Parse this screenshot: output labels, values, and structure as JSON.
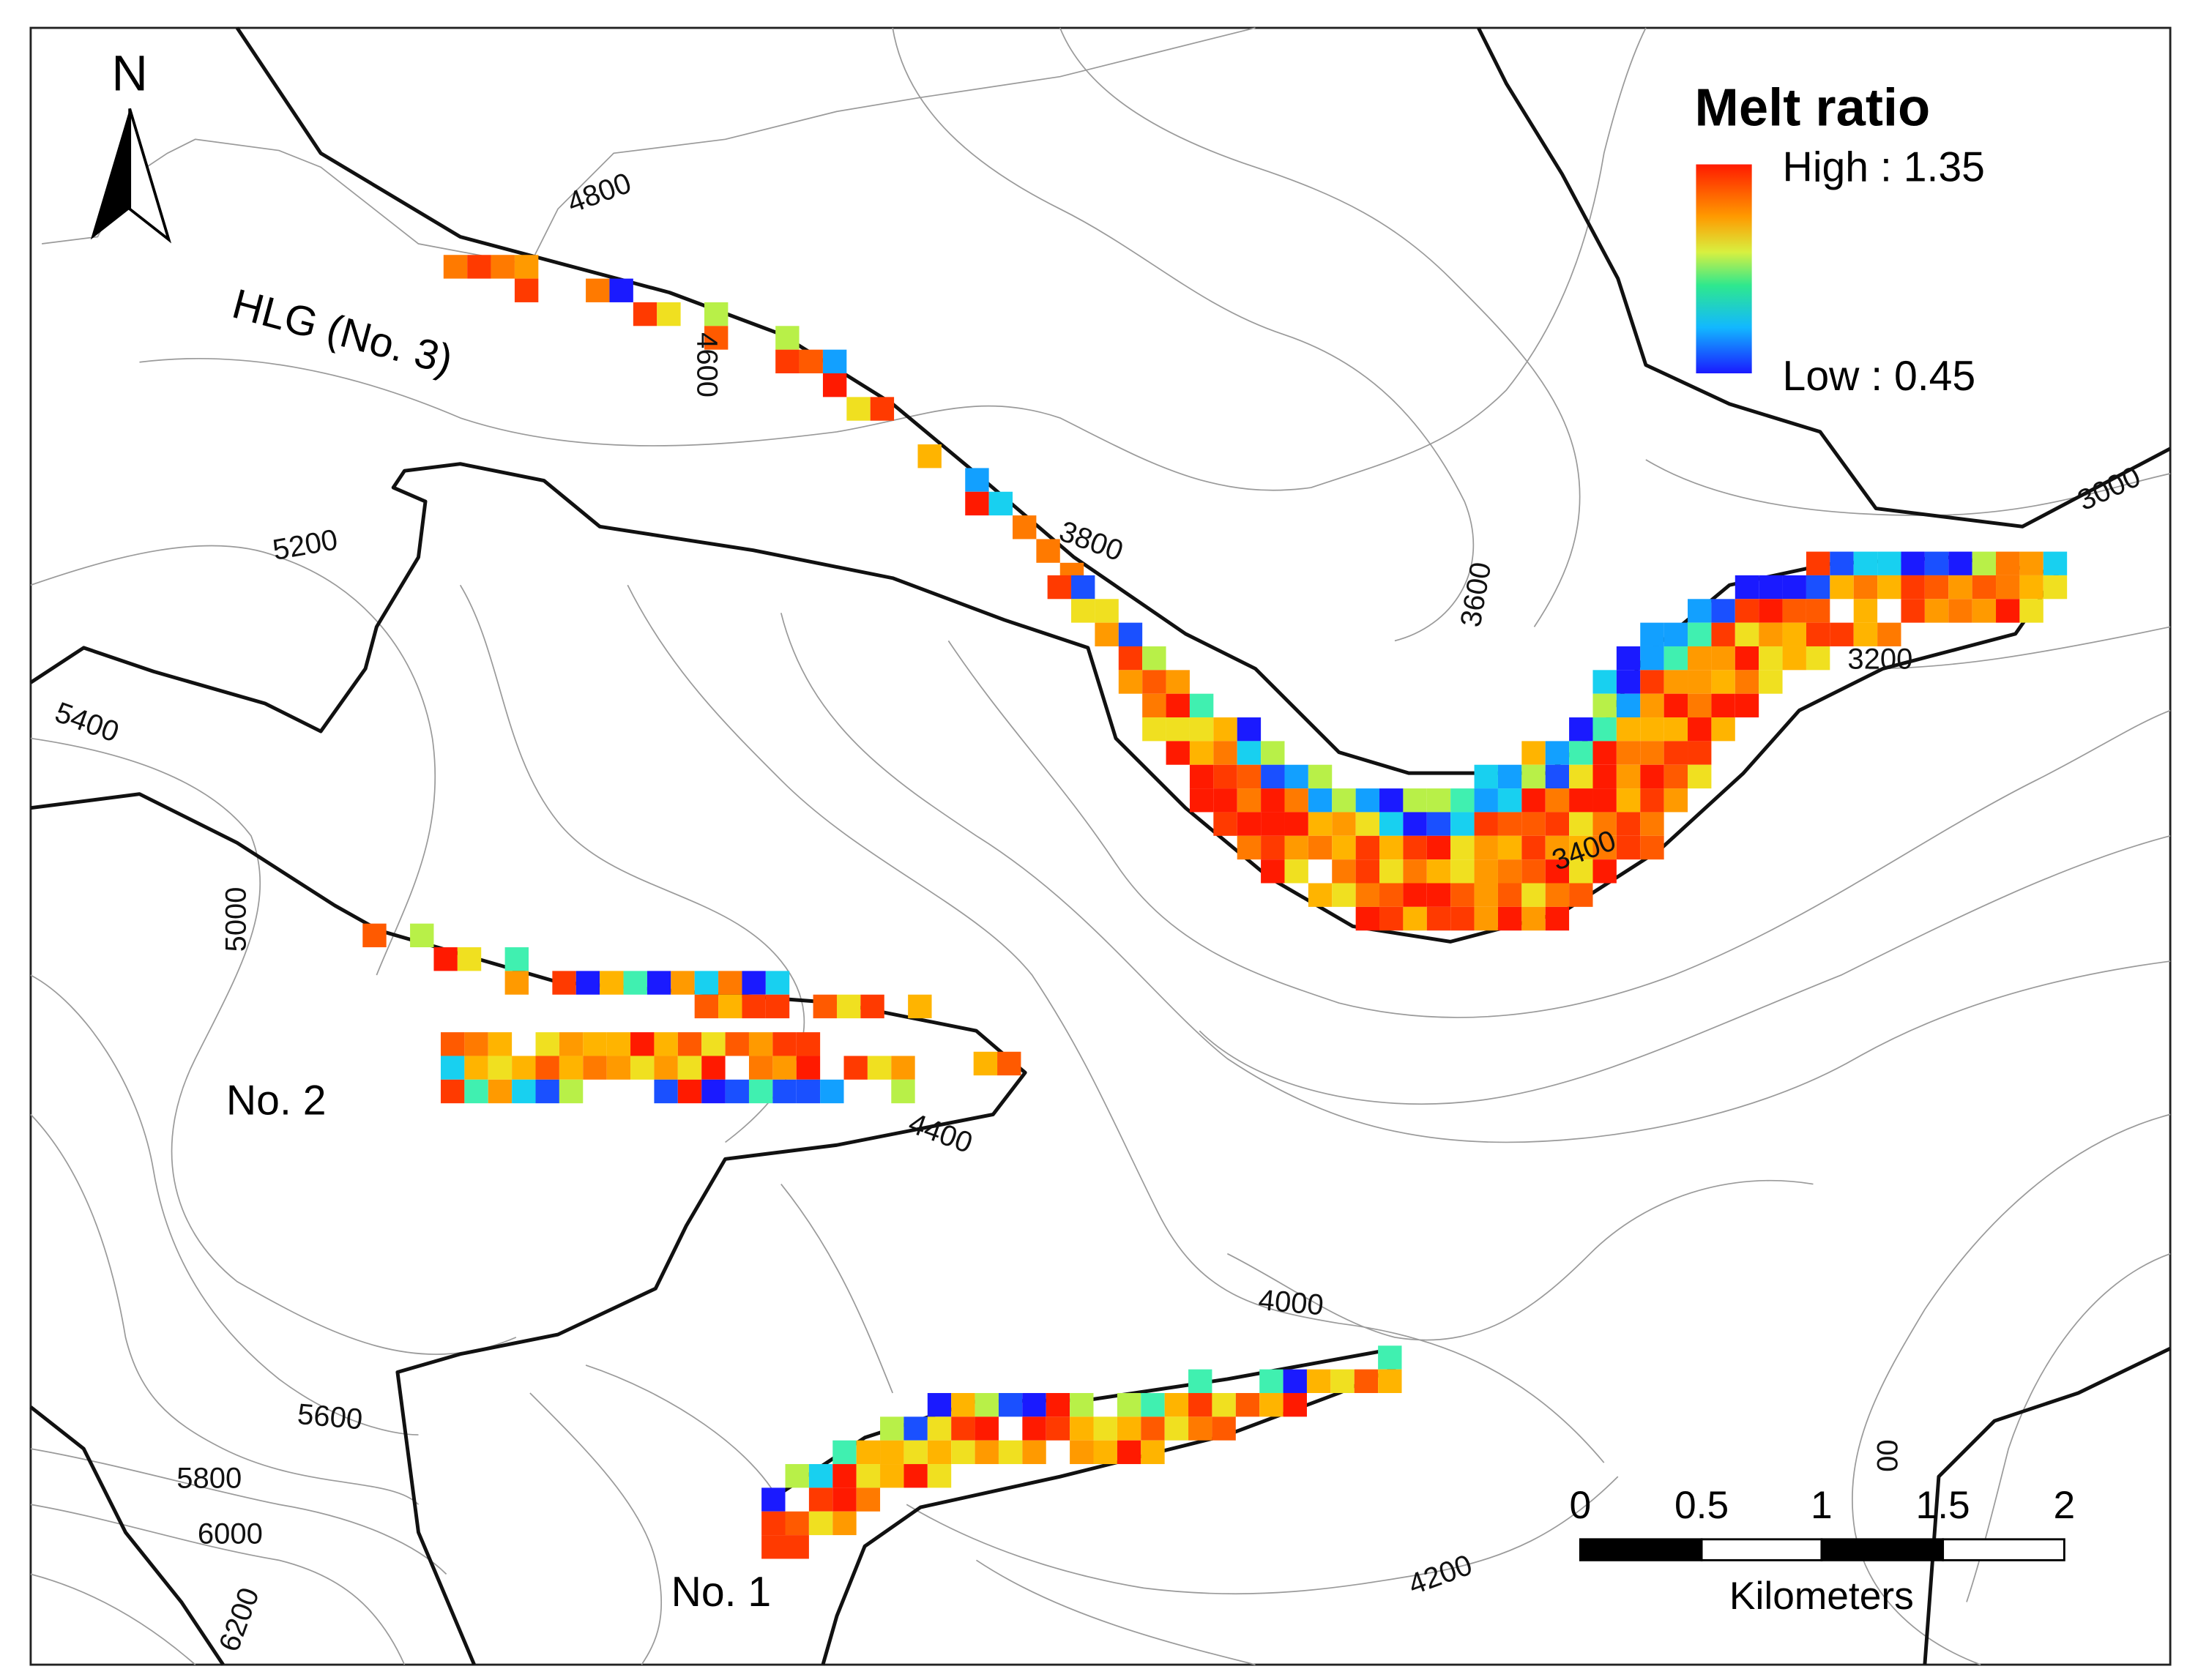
{
  "north": "N",
  "legend": {
    "title": "Melt ratio",
    "high": "High : 1.35",
    "low": "Low : 0.45"
  },
  "glaciers": [
    "HLG (No. 3)",
    "No. 2",
    "No. 1"
  ],
  "contours": [
    "4800",
    "4600",
    "5200",
    "5400",
    "5000",
    "3800",
    "3600",
    "3000",
    "3200",
    "3400",
    "4400",
    "4000",
    "5600",
    "5800",
    "6000",
    "6200",
    "4200",
    "00"
  ],
  "scale_bar": {
    "ticks": [
      "0",
      "0.5",
      "1",
      "1.5",
      "2"
    ],
    "unit": "Kilometers"
  }
}
